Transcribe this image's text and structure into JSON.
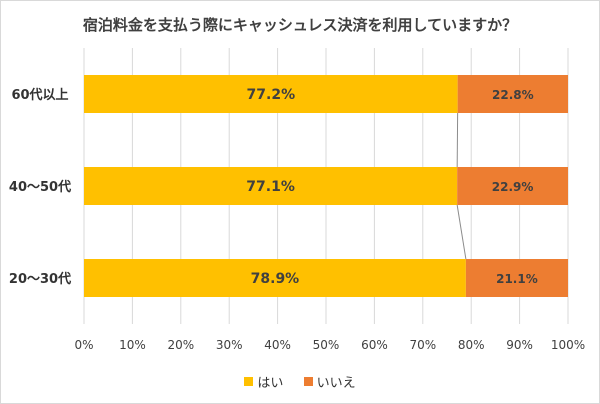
{
  "chart_data": {
    "type": "bar",
    "orientation": "horizontal",
    "stacked": true,
    "title": "宿泊料金を支払う際にキャッシュレス決済を利用していますか？",
    "categories": [
      "60代以上",
      "40～50代",
      "20～30代"
    ],
    "series": [
      {
        "name": "はい",
        "color": "#ffc000",
        "values": [
          77.2,
          77.1,
          78.9
        ],
        "labels": [
          "77.2%",
          "77.1%",
          "78.9%"
        ]
      },
      {
        "name": "いいえ",
        "color": "#ed7d31",
        "values": [
          22.8,
          22.9,
          21.1
        ],
        "labels": [
          "22.8%",
          "22.9%",
          "21.1%"
        ]
      }
    ],
    "xlim": [
      0,
      100
    ],
    "xticks": [
      "0%",
      "10%",
      "20%",
      "30%",
      "40%",
      "50%",
      "60%",
      "70%",
      "80%",
      "90%",
      "100%"
    ],
    "grid": true,
    "series_lines": true,
    "legend_position": "bottom"
  }
}
